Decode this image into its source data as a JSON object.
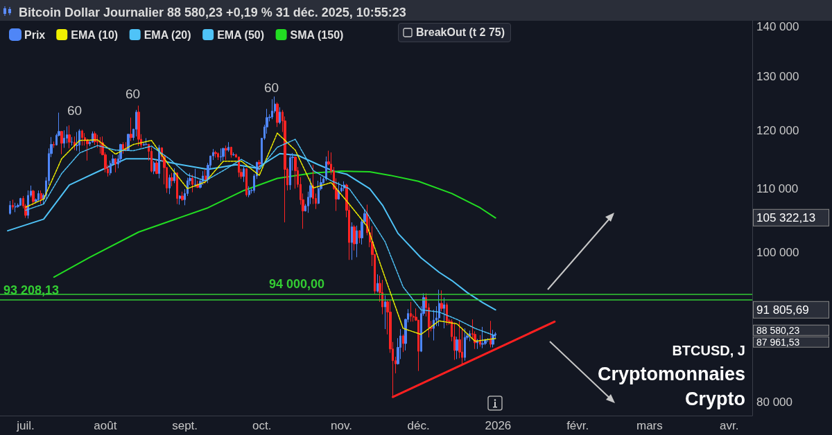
{
  "chart_data": {
    "type": "candlestick",
    "title": "Bitcoin Dollar Journalier 88 580,23 +0,19 % 31 déc. 2025, 10:55:23",
    "log": "y",
    "marker": "none",
    "legend": "top left",
    "xlim": [
      "2025-06-21",
      "2026-04-10"
    ],
    "xticks": [
      {
        "value": "2025-07-01",
        "label": "juil."
      },
      {
        "value": "2025-08-01",
        "label": "août"
      },
      {
        "value": "2025-09-01",
        "label": "sept."
      },
      {
        "value": "2025-10-01",
        "label": "oct."
      },
      {
        "value": "2025-11-01",
        "label": "nov."
      },
      {
        "value": "2025-12-01",
        "label": "déc."
      },
      {
        "value": "2026-01-01",
        "label": "2026"
      },
      {
        "value": "2026-02-01",
        "label": "févr."
      },
      {
        "value": "2026-03-01",
        "label": "mars"
      },
      {
        "value": "2026-04-01",
        "label": "avr."
      }
    ],
    "ylim": [
      78400,
      141300
    ],
    "yticks": [
      {
        "value": 80000,
        "label": "80 000"
      },
      {
        "value": 87961.53,
        "label": "87 961,53"
      },
      {
        "value": 88580.23,
        "label": "88 580,23"
      },
      {
        "value": 91805.69,
        "label": "91 805,69"
      },
      {
        "value": 100000,
        "label": "100 000"
      },
      {
        "value": 105322.13,
        "label": "105 322,13"
      },
      {
        "value": 110000,
        "label": "110 000"
      },
      {
        "value": 120000,
        "label": "120 000"
      },
      {
        "value": 130000,
        "label": "130 000"
      },
      {
        "value": 140000,
        "label": "140 000"
      }
    ],
    "ref_lines": [
      {
        "axis": "y",
        "value": 93208.13,
        "label": "93 208,13",
        "color": "#33cc33"
      },
      {
        "axis": "y",
        "value": 94000,
        "label": "94 000,00",
        "color": "#33cc33"
      }
    ],
    "series": [
      {
        "name": "Prix",
        "color": "#4f86f7",
        "colors": [
          "#4f86f7",
          "#ff2424",
          "#4f86f7",
          "#4f86f7",
          "#4f86f7",
          "#ff2424",
          "#ff2424",
          "#4f86f7",
          "#4f86f7",
          "#ff2424",
          "#4f86f7",
          "#4f86f7",
          "#ff2424",
          "#4f86f7",
          "#4f86f7",
          "#4f86f7",
          "#4f86f7",
          "#ff2424",
          "#4f86f7",
          "#4f86f7",
          "#ff2424",
          "#4f86f7",
          "#4f86f7",
          "#ff2424",
          "#4f86f7",
          "#ff2424",
          "#4f86f7",
          "#4f86f7",
          "#ff2424",
          "#ff2424",
          "#ff2424",
          "#4f86f7",
          "#4f86f7",
          "#ff2424",
          "#ff2424",
          "#ff2424",
          "#ff2424",
          "#ff2424",
          "#ff2424",
          "#4f86f7",
          "#4f86f7",
          "#ff2424",
          "#4f86f7",
          "#4f86f7",
          "#ff2424",
          "#ff2424",
          "#4f86f7",
          "#ff2424",
          "#4f86f7",
          "#4f86f7",
          "#ff2424",
          "#ff2424",
          "#4f86f7",
          "#4f86f7",
          "#ff2424",
          "#ff2424",
          "#4f86f7",
          "#ff2424",
          "#4f86f7",
          "#ff2424",
          "#ff2424",
          "#ff2424",
          "#4f86f7",
          "#ff2424",
          "#4f86f7",
          "#ff2424",
          "#4f86f7",
          "#ff2424",
          "#4f86f7",
          "#4f86f7",
          "#4f86f7",
          "#ff2424",
          "#4f86f7",
          "#ff2424",
          "#4f86f7",
          "#4f86f7",
          "#ff2424",
          "#4f86f7",
          "#4f86f7",
          "#4f86f7",
          "#ff2424",
          "#ff2424",
          "#4f86f7",
          "#4f86f7",
          "#ff2424",
          "#4f86f7",
          "#ff2424",
          "#4f86f7",
          "#ff2424",
          "#ff2424",
          "#ff2424",
          "#4f86f7",
          "#ff2424",
          "#4f86f7",
          "#4f86f7",
          "#4f86f7",
          "#4f86f7",
          "#ff2424",
          "#4f86f7",
          "#4f86f7",
          "#4f86f7",
          "#4f86f7",
          "#4f86f7",
          "#4f86f7",
          "#ff2424",
          "#4f86f7",
          "#ff2424",
          "#ff2424",
          "#ff2424",
          "#4f86f7",
          "#4f86f7",
          "#ff2424",
          "#ff2424",
          "#ff2424",
          "#ff2424",
          "#4f86f7",
          "#4f86f7",
          "#4f86f7",
          "#ff2424",
          "#ff2424",
          "#4f86f7",
          "#4f86f7",
          "#4f86f7",
          "#4f86f7",
          "#ff2424",
          "#ff2424",
          "#ff2424",
          "#ff2424",
          "#4f86f7",
          "#4f86f7",
          "#4f86f7",
          "#ff2424",
          "#ff2424",
          "#4f86f7",
          "#ff2424",
          "#4f86f7",
          "#ff2424",
          "#4f86f7",
          "#4f86f7",
          "#ff2424",
          "#ff2424",
          "#ff2424",
          "#ff2424",
          "#4f86f7",
          "#ff2424",
          "#ff2424",
          "#4f86f7",
          "#ff2424",
          "#ff2424",
          "#ff2424",
          "#ff2424",
          "#4f86f7",
          "#4f86f7",
          "#ff2424",
          "#4f86f7",
          "#4f86f7",
          "#ff2424",
          "#ff2424",
          "#ff2424",
          "#ff2424",
          "#4f86f7",
          "#4f86f7",
          "#ff2424",
          "#ff2424",
          "#ff2424",
          "#4f86f7",
          "#4f86f7",
          "#4f86f7",
          "#ff2424",
          "#4f86f7",
          "#ff2424",
          "#ff2424",
          "#ff2424",
          "#ff2424",
          "#4f86f7",
          "#ff2424",
          "#ff2424",
          "#4f86f7",
          "#4f86f7",
          "#4f86f7",
          "#ff2424",
          "#ff2424",
          "#4f86f7",
          "#ff2424",
          "#4f86f7",
          "#4f86f7",
          "#4f86f7",
          "#ff2424",
          "#4f86f7",
          "#4f86f7"
        ],
        "x": [
          "2025-06-25",
          "2025-06-26",
          "2025-06-27",
          "2025-06-28",
          "2025-06-29",
          "2025-06-30",
          "2025-07-01",
          "2025-07-02",
          "2025-07-03",
          "2025-07-04",
          "2025-07-05",
          "2025-07-06",
          "2025-07-07",
          "2025-07-08",
          "2025-07-09",
          "2025-07-10",
          "2025-07-11",
          "2025-07-12",
          "2025-07-13",
          "2025-07-14",
          "2025-07-15",
          "2025-07-16",
          "2025-07-17",
          "2025-07-18",
          "2025-07-19",
          "2025-07-20",
          "2025-07-21",
          "2025-07-22",
          "2025-07-23",
          "2025-07-24",
          "2025-07-25",
          "2025-07-26",
          "2025-07-27",
          "2025-07-28",
          "2025-07-29",
          "2025-07-30",
          "2025-07-31",
          "2025-08-01",
          "2025-08-02",
          "2025-08-03",
          "2025-08-04",
          "2025-08-05",
          "2025-08-06",
          "2025-08-07",
          "2025-08-08",
          "2025-08-09",
          "2025-08-10",
          "2025-08-11",
          "2025-08-12",
          "2025-08-13",
          "2025-08-14",
          "2025-08-15",
          "2025-08-16",
          "2025-08-17",
          "2025-08-18",
          "2025-08-19",
          "2025-08-20",
          "2025-08-21",
          "2025-08-22",
          "2025-08-23",
          "2025-08-24",
          "2025-08-25",
          "2025-08-26",
          "2025-08-27",
          "2025-08-28",
          "2025-08-29",
          "2025-08-30",
          "2025-08-31",
          "2025-09-01",
          "2025-09-02",
          "2025-09-03",
          "2025-09-04",
          "2025-09-05",
          "2025-09-06",
          "2025-09-07",
          "2025-09-08",
          "2025-09-09",
          "2025-09-10",
          "2025-09-11",
          "2025-09-12",
          "2025-09-13",
          "2025-09-14",
          "2025-09-15",
          "2025-09-16",
          "2025-09-17",
          "2025-09-18",
          "2025-09-19",
          "2025-09-20",
          "2025-09-21",
          "2025-09-22",
          "2025-09-23",
          "2025-09-24",
          "2025-09-25",
          "2025-09-26",
          "2025-09-27",
          "2025-09-28",
          "2025-09-29",
          "2025-09-30",
          "2025-10-01",
          "2025-10-02",
          "2025-10-03",
          "2025-10-04",
          "2025-10-05",
          "2025-10-06",
          "2025-10-07",
          "2025-10-08",
          "2025-10-09",
          "2025-10-10",
          "2025-10-11",
          "2025-10-12",
          "2025-10-13",
          "2025-10-14",
          "2025-10-15",
          "2025-10-16",
          "2025-10-17",
          "2025-10-18",
          "2025-10-19",
          "2025-10-20",
          "2025-10-21",
          "2025-10-22",
          "2025-10-23",
          "2025-10-24",
          "2025-10-25",
          "2025-10-26",
          "2025-10-27",
          "2025-10-28",
          "2025-10-29",
          "2025-10-30",
          "2025-10-31",
          "2025-11-01",
          "2025-11-02",
          "2025-11-03",
          "2025-11-04",
          "2025-11-05",
          "2025-11-06",
          "2025-11-07",
          "2025-11-08",
          "2025-11-09",
          "2025-11-10",
          "2025-11-11",
          "2025-11-12",
          "2025-11-13",
          "2025-11-14",
          "2025-11-15",
          "2025-11-16",
          "2025-11-17",
          "2025-11-18",
          "2025-11-19",
          "2025-11-20",
          "2025-11-21",
          "2025-11-22",
          "2025-11-23",
          "2025-11-24",
          "2025-11-25",
          "2025-11-26",
          "2025-11-27",
          "2025-11-28",
          "2025-11-29",
          "2025-11-30",
          "2025-12-01",
          "2025-12-02",
          "2025-12-03",
          "2025-12-04",
          "2025-12-05",
          "2025-12-06",
          "2025-12-07",
          "2025-12-08",
          "2025-12-09",
          "2025-12-10",
          "2025-12-11",
          "2025-12-12",
          "2025-12-13",
          "2025-12-14",
          "2025-12-15",
          "2025-12-16",
          "2025-12-17",
          "2025-12-18",
          "2025-12-19",
          "2025-12-20",
          "2025-12-21",
          "2025-12-22",
          "2025-12-23",
          "2025-12-24",
          "2025-12-25",
          "2025-12-26",
          "2025-12-27",
          "2025-12-28",
          "2025-12-29",
          "2025-12-30",
          "2025-12-31"
        ],
        "ohlc": [
          [
            106000,
            108000,
            105800,
            107300
          ],
          [
            107300,
            108200,
            106600,
            107000
          ],
          [
            107000,
            107700,
            106200,
            107100
          ],
          [
            107100,
            107600,
            106900,
            107300
          ],
          [
            107300,
            108500,
            107200,
            108400
          ],
          [
            108400,
            108800,
            106800,
            107200
          ],
          [
            107200,
            107500,
            105300,
            105700
          ],
          [
            105700,
            109700,
            105200,
            108900
          ],
          [
            108900,
            110500,
            108600,
            109600
          ],
          [
            109600,
            109800,
            107300,
            107900
          ],
          [
            107900,
            108400,
            107800,
            108200
          ],
          [
            108200,
            109700,
            107900,
            109200
          ],
          [
            109200,
            109700,
            107500,
            108300
          ],
          [
            108300,
            109200,
            107500,
            108900
          ],
          [
            108900,
            111900,
            108400,
            111300
          ],
          [
            111300,
            116800,
            110600,
            115900
          ],
          [
            115900,
            118800,
            115300,
            117500
          ],
          [
            117500,
            118000,
            116900,
            117400
          ],
          [
            117400,
            119400,
            117300,
            119100
          ],
          [
            119100,
            123200,
            118900,
            119800
          ],
          [
            119800,
            119900,
            115800,
            117700
          ],
          [
            117700,
            120000,
            116900,
            118600
          ],
          [
            118600,
            120700,
            117700,
            119200
          ],
          [
            119200,
            120900,
            116800,
            117900
          ],
          [
            117900,
            118800,
            117300,
            117900
          ],
          [
            117900,
            118900,
            116500,
            117300
          ],
          [
            117300,
            119700,
            116400,
            117400
          ],
          [
            117400,
            120200,
            116200,
            119900
          ],
          [
            119900,
            120100,
            117300,
            118700
          ],
          [
            118700,
            119500,
            117300,
            118300
          ],
          [
            118300,
            118500,
            114700,
            117600
          ],
          [
            117600,
            118300,
            117200,
            117900
          ],
          [
            117900,
            119800,
            117800,
            119400
          ],
          [
            119400,
            119800,
            117400,
            118000
          ],
          [
            118000,
            119200,
            116900,
            117900
          ],
          [
            117900,
            118800,
            115900,
            117800
          ],
          [
            117800,
            118900,
            115600,
            115700
          ],
          [
            115700,
            116100,
            112700,
            113300
          ],
          [
            113300,
            114000,
            112000,
            112600
          ],
          [
            112600,
            114700,
            112200,
            114200
          ],
          [
            114200,
            115700,
            114100,
            115000
          ],
          [
            115000,
            115100,
            112700,
            114100
          ],
          [
            114100,
            115700,
            113400,
            115000
          ],
          [
            115000,
            117600,
            114300,
            117500
          ],
          [
            117500,
            117900,
            115900,
            116700
          ],
          [
            116700,
            117900,
            116300,
            116500
          ],
          [
            116500,
            119300,
            116500,
            119300
          ],
          [
            119300,
            122300,
            118100,
            118700
          ],
          [
            118700,
            120300,
            118200,
            120200
          ],
          [
            120200,
            123700,
            118900,
            123300
          ],
          [
            123300,
            124500,
            117200,
            118400
          ],
          [
            118400,
            119300,
            116900,
            117400
          ],
          [
            117400,
            117900,
            117200,
            117500
          ],
          [
            117500,
            118600,
            117300,
            117500
          ],
          [
            117500,
            117600,
            114700,
            116300
          ],
          [
            116300,
            117000,
            112700,
            112900
          ],
          [
            112900,
            114600,
            112400,
            114300
          ],
          [
            114300,
            114800,
            112400,
            112500
          ],
          [
            112500,
            117400,
            111700,
            116900
          ],
          [
            116900,
            117000,
            114600,
            115400
          ],
          [
            115400,
            115600,
            110700,
            113500
          ],
          [
            113500,
            113600,
            109300,
            110100
          ],
          [
            110100,
            112300,
            109100,
            111800
          ],
          [
            111800,
            112600,
            110400,
            111300
          ],
          [
            111300,
            113400,
            110900,
            112600
          ],
          [
            112600,
            112700,
            107500,
            108400
          ],
          [
            108400,
            108900,
            107400,
            108800
          ],
          [
            108800,
            109500,
            108000,
            108200
          ],
          [
            108200,
            109900,
            107300,
            109200
          ],
          [
            109200,
            111800,
            108800,
            111300
          ],
          [
            111300,
            112600,
            110600,
            111700
          ],
          [
            111700,
            112300,
            109400,
            110700
          ],
          [
            110700,
            113300,
            110200,
            110700
          ],
          [
            110700,
            111300,
            110100,
            110200
          ],
          [
            110200,
            111500,
            110000,
            111200
          ],
          [
            111200,
            112900,
            110600,
            112100
          ],
          [
            112100,
            113200,
            110800,
            111500
          ],
          [
            111500,
            114300,
            110900,
            113900
          ],
          [
            113900,
            115500,
            113400,
            115500
          ],
          [
            115500,
            116700,
            114800,
            116100
          ],
          [
            116100,
            116400,
            115200,
            115900
          ],
          [
            115900,
            116100,
            114800,
            115300
          ],
          [
            115300,
            116800,
            114500,
            115400
          ],
          [
            115400,
            116900,
            114700,
            116800
          ],
          [
            116800,
            117300,
            114800,
            116500
          ],
          [
            116500,
            117900,
            116200,
            117000
          ],
          [
            117000,
            117100,
            115200,
            115700
          ],
          [
            115700,
            116100,
            115500,
            115700
          ],
          [
            115700,
            115900,
            115200,
            115300
          ],
          [
            115300,
            115400,
            111900,
            112700
          ],
          [
            112700,
            113300,
            111600,
            112000
          ],
          [
            112000,
            113900,
            111100,
            113300
          ],
          [
            113300,
            113400,
            108700,
            109000
          ],
          [
            109000,
            110400,
            108600,
            109700
          ],
          [
            109700,
            110000,
            109200,
            109700
          ],
          [
            109700,
            112400,
            109300,
            112100
          ],
          [
            112100,
            114500,
            111600,
            114400
          ],
          [
            114400,
            114800,
            112600,
            114100
          ],
          [
            114100,
            118600,
            113900,
            118600
          ],
          [
            118600,
            121000,
            118300,
            120600
          ],
          [
            120600,
            123900,
            119400,
            122300
          ],
          [
            122300,
            122900,
            121600,
            122400
          ],
          [
            122400,
            125700,
            122000,
            123500
          ],
          [
            123500,
            126200,
            123100,
            124800
          ],
          [
            124800,
            125100,
            120600,
            121400
          ],
          [
            121400,
            124200,
            121100,
            123300
          ],
          [
            123300,
            123700,
            119700,
            121700
          ],
          [
            121700,
            122500,
            104600,
            113200
          ],
          [
            113200,
            113500,
            109700,
            110600
          ],
          [
            110600,
            115800,
            109800,
            115200
          ],
          [
            115200,
            116000,
            113000,
            115300
          ],
          [
            115300,
            115400,
            110000,
            113000
          ],
          [
            113000,
            113600,
            110200,
            110700
          ],
          [
            110700,
            111900,
            107400,
            108200
          ],
          [
            108200,
            109200,
            103600,
            106400
          ],
          [
            106400,
            107500,
            106300,
            107200
          ],
          [
            107200,
            109500,
            106100,
            108600
          ],
          [
            108600,
            111700,
            107500,
            110500
          ],
          [
            110500,
            114000,
            107500,
            108400
          ],
          [
            108400,
            109200,
            106700,
            107600
          ],
          [
            107600,
            111300,
            107500,
            110000
          ],
          [
            110000,
            112000,
            109700,
            111000
          ],
          [
            111000,
            111900,
            110800,
            111600
          ],
          [
            111600,
            115400,
            111300,
            114500
          ],
          [
            114500,
            116400,
            113900,
            114100
          ],
          [
            114100,
            116100,
            112300,
            112900
          ],
          [
            112900,
            113600,
            109800,
            110000
          ],
          [
            110000,
            111700,
            106400,
            108300
          ],
          [
            108300,
            111100,
            108200,
            109600
          ],
          [
            109600,
            110500,
            109400,
            110100
          ],
          [
            110100,
            111200,
            109600,
            110600
          ],
          [
            110600,
            110800,
            105400,
            106500
          ],
          [
            106500,
            107300,
            98900,
            101500
          ],
          [
            101500,
            104600,
            98900,
            103900
          ],
          [
            103900,
            104200,
            100300,
            101300
          ],
          [
            101300,
            104100,
            99300,
            103300
          ],
          [
            103300,
            103400,
            101400,
            102200
          ],
          [
            102200,
            105000,
            101200,
            104700
          ],
          [
            104700,
            106600,
            104300,
            106000
          ],
          [
            106000,
            107400,
            102600,
            103000
          ],
          [
            103000,
            105300,
            100800,
            101600
          ],
          [
            101600,
            104000,
            98000,
            99700
          ],
          [
            99700,
            99800,
            94000,
            94400
          ],
          [
            94400,
            96800,
            94200,
            95500
          ],
          [
            95500,
            96600,
            92900,
            94200
          ],
          [
            94200,
            96000,
            91200,
            92200
          ],
          [
            92200,
            93800,
            89200,
            92900
          ],
          [
            92900,
            93100,
            88500,
            91500
          ],
          [
            91500,
            93100,
            86100,
            86600
          ],
          [
            86600,
            87500,
            80600,
            85100
          ],
          [
            85100,
            85600,
            83500,
            84700
          ],
          [
            84700,
            88000,
            84600,
            86800
          ],
          [
            86800,
            89200,
            85300,
            88300
          ],
          [
            88300,
            88500,
            86200,
            87300
          ],
          [
            87300,
            90600,
            86400,
            90500
          ],
          [
            90500,
            91900,
            90100,
            91300
          ],
          [
            91300,
            92900,
            90200,
            90900
          ],
          [
            90900,
            91200,
            90200,
            90800
          ],
          [
            90800,
            92000,
            90300,
            90400
          ],
          [
            90400,
            90400,
            83800,
            86300
          ],
          [
            86300,
            92300,
            86200,
            91300
          ],
          [
            91300,
            94100,
            91000,
            93500
          ],
          [
            93500,
            94100,
            90900,
            92100
          ],
          [
            92100,
            92700,
            88100,
            89400
          ],
          [
            89400,
            90300,
            88900,
            89300
          ],
          [
            89300,
            91800,
            87700,
            90400
          ],
          [
            90400,
            92300,
            89600,
            90700
          ],
          [
            90700,
            94600,
            89600,
            92700
          ],
          [
            92700,
            94500,
            91600,
            92000
          ],
          [
            92000,
            93500,
            89300,
            92500
          ],
          [
            92500,
            92800,
            89700,
            90300
          ],
          [
            90300,
            90600,
            89800,
            90200
          ],
          [
            90200,
            90500,
            87600,
            88200
          ],
          [
            88200,
            90100,
            85200,
            86400
          ],
          [
            86400,
            88200,
            85300,
            87800
          ],
          [
            87800,
            90300,
            85400,
            86200
          ],
          [
            86200,
            89400,
            84500,
            85500
          ],
          [
            85500,
            89300,
            85100,
            88100
          ],
          [
            88100,
            88600,
            87800,
            88300
          ],
          [
            88300,
            89000,
            87600,
            88600
          ],
          [
            88600,
            90500,
            87900,
            88500
          ],
          [
            88500,
            88900,
            86600,
            87400
          ],
          [
            87400,
            87900,
            86600,
            87600
          ],
          [
            87600,
            88400,
            86900,
            87200
          ],
          [
            87200,
            89500,
            86700,
            87300
          ],
          [
            87300,
            87900,
            87100,
            87800
          ],
          [
            87800,
            88000,
            87500,
            87800
          ],
          [
            87800,
            90300,
            86800,
            87200
          ],
          [
            87200,
            89100,
            86800,
            88400
          ],
          [
            88400,
            88800,
            87900,
            88580
          ]
        ]
      },
      {
        "name": "EMA (10)",
        "type": "line",
        "color": "#f0f000",
        "line_style": "dashed",
        "x": [
          "2025-07-01",
          "2025-07-08",
          "2025-07-15",
          "2025-07-22",
          "2025-07-29",
          "2025-08-05",
          "2025-08-12",
          "2025-08-19",
          "2025-08-26",
          "2025-09-02",
          "2025-09-09",
          "2025-09-16",
          "2025-09-23",
          "2025-09-30",
          "2025-10-07",
          "2025-10-14",
          "2025-10-21",
          "2025-10-28",
          "2025-11-04",
          "2025-11-11",
          "2025-11-18",
          "2025-11-25",
          "2025-12-02",
          "2025-12-09",
          "2025-12-16",
          "2025-12-23",
          "2025-12-31"
        ],
        "values": [
          107000,
          108300,
          115000,
          118200,
          118300,
          115800,
          117500,
          118200,
          113800,
          110000,
          111100,
          114600,
          114600,
          112200,
          119500,
          116500,
          110100,
          111000,
          107500,
          104000,
          96300,
          89300,
          88500,
          90300,
          89900,
          87600,
          87960
        ]
      },
      {
        "name": "EMA (20)",
        "type": "line",
        "color": "#4fc3f7",
        "line_style": "dashed",
        "x": [
          "2025-07-01",
          "2025-07-08",
          "2025-07-15",
          "2025-07-22",
          "2025-07-29",
          "2025-08-05",
          "2025-08-12",
          "2025-08-19",
          "2025-08-26",
          "2025-09-02",
          "2025-09-09",
          "2025-09-16",
          "2025-09-23",
          "2025-09-30",
          "2025-10-07",
          "2025-10-14",
          "2025-10-21",
          "2025-10-28",
          "2025-11-04",
          "2025-11-11",
          "2025-11-18",
          "2025-11-25",
          "2025-12-02",
          "2025-12-09",
          "2025-12-16",
          "2025-12-23",
          "2025-12-31"
        ],
        "values": [
          106500,
          107500,
          112500,
          116000,
          117300,
          116500,
          116400,
          117200,
          115000,
          112300,
          111300,
          113000,
          114900,
          113200,
          117000,
          118400,
          113000,
          111300,
          110000,
          106000,
          101600,
          95000,
          91800,
          91500,
          90500,
          89300,
          88300
        ]
      },
      {
        "name": "EMA (50)",
        "type": "line",
        "color": "#4fc3f7",
        "line_style": "solid",
        "x": [
          "2025-06-24",
          "2025-07-08",
          "2025-07-18",
          "2025-07-29",
          "2025-08-09",
          "2025-08-19",
          "2025-08-28",
          "2025-09-10",
          "2025-09-21",
          "2025-09-29",
          "2025-10-08",
          "2025-10-15",
          "2025-10-23",
          "2025-10-29",
          "2025-11-03",
          "2025-11-12",
          "2025-11-17",
          "2025-11-23",
          "2025-12-02",
          "2025-12-09",
          "2025-12-14",
          "2025-12-20",
          "2025-12-26",
          "2025-12-31"
        ],
        "values": [
          103300,
          105100,
          110600,
          112800,
          115000,
          115000,
          114200,
          113200,
          114000,
          113400,
          115900,
          115600,
          114000,
          112900,
          112400,
          110000,
          107300,
          102900,
          99200,
          97100,
          95900,
          94200,
          92800,
          91800
        ]
      },
      {
        "name": "SMA (150)",
        "type": "line",
        "color": "#22dd22",
        "line_style": "solid",
        "x": [
          "2025-07-12",
          "2025-07-26",
          "2025-08-14",
          "2025-09-10",
          "2025-09-24",
          "2025-10-07",
          "2025-10-21",
          "2025-11-01",
          "2025-11-12",
          "2025-11-20",
          "2025-12-01",
          "2025-12-14",
          "2025-12-25",
          "2025-12-31"
        ],
        "values": [
          96400,
          99300,
          103100,
          106900,
          109700,
          111700,
          112600,
          112900,
          112800,
          112200,
          111200,
          109200,
          106900,
          105300
        ]
      },
      {
        "type": "line",
        "color": "#ff2020",
        "line_style": "solid",
        "x": [
          "2025-11-21",
          "2026-01-23"
        ],
        "values": [
          80600,
          90200
        ]
      }
    ],
    "annotations": [
      "BreakOut (t 2 75)",
      "60",
      "60",
      "60",
      "BTCUSD, J",
      "Cryptomonnaies",
      "Crypto"
    ]
  }
}
